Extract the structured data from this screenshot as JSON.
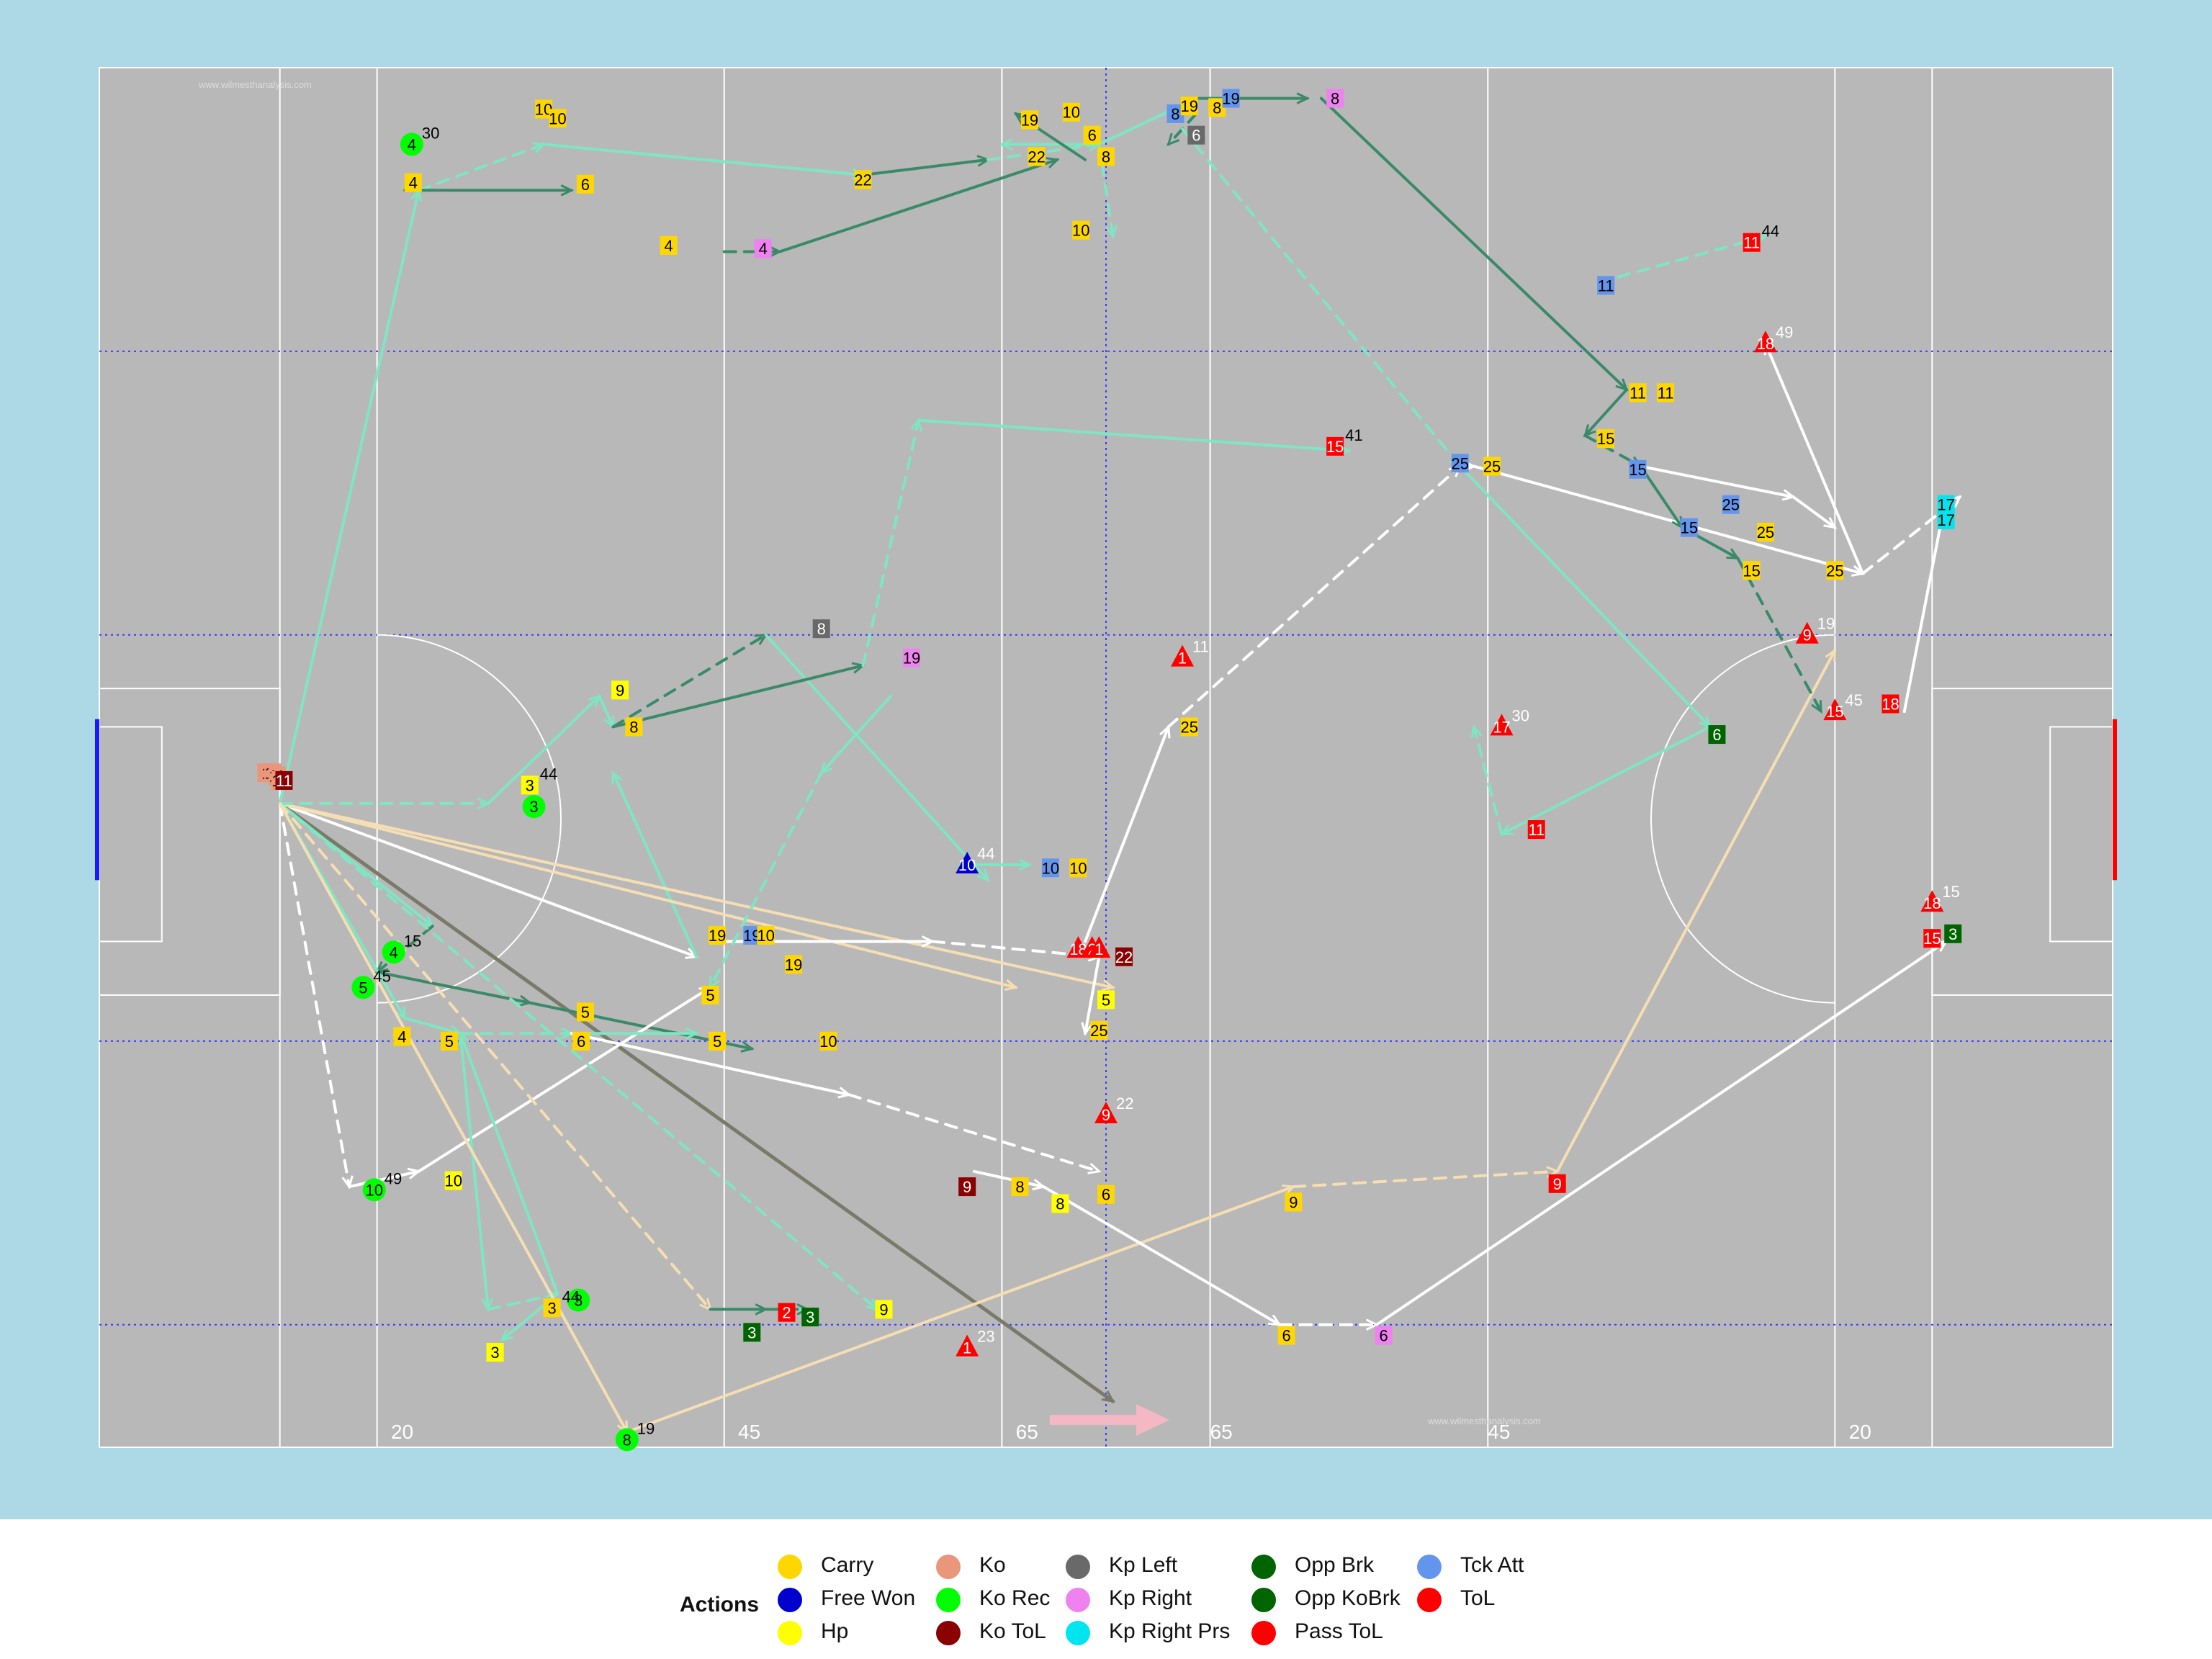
{
  "chart_data": {
    "type": "scatter",
    "title": "",
    "watermark": "www.wilmesthanalysis.com",
    "pitch": {
      "xlim": [
        0,
        145
      ],
      "ylim": [
        0,
        90
      ],
      "attack_direction": "right",
      "distance_labels": [
        "20",
        "45",
        "65",
        "65",
        "45",
        "20"
      ],
      "background": "#add8e6",
      "surface": "#b8b8b8",
      "line_color": "#ffffff",
      "quarter_line_color": "#1a1aff"
    },
    "legend": {
      "title": "Actions",
      "placement": "bottom",
      "items": [
        {
          "label": "Carry",
          "color": "#ffd700"
        },
        {
          "label": "Free Won",
          "color": "#0000cd"
        },
        {
          "label": "Hp",
          "color": "#ffff00"
        },
        {
          "label": "Ko",
          "color": "#e9967a"
        },
        {
          "label": "Ko Rec",
          "color": "#00ff00"
        },
        {
          "label": "Ko ToL",
          "color": "#8b0000"
        },
        {
          "label": "Kp Left",
          "color": "#696969"
        },
        {
          "label": "Kp Right",
          "color": "#ee82ee"
        },
        {
          "label": "Kp Right Prs",
          "color": "#00e5ee"
        },
        {
          "label": "Opp Brk",
          "color": "#006400"
        },
        {
          "label": "Opp KoBrk",
          "color": "#006400"
        },
        {
          "label": "Pass ToL",
          "color": "#ff0000"
        },
        {
          "label": "Tck Att",
          "color": "#6495ed"
        },
        {
          "label": "ToL",
          "color": "#ff0000"
        }
      ]
    },
    "link_colors": {
      "hand": "#7fe5c3",
      "hand_dark": "#3a8a6a",
      "kick": "#ffffff",
      "kick_long": "#f5deb3",
      "ko": "#7a7a6a"
    },
    "links": [
      [
        13,
        48,
        23,
        8,
        "hand"
      ],
      [
        23,
        8,
        32,
        5,
        "hand"
      ],
      [
        32,
        5,
        55,
        7,
        "hand"
      ],
      [
        55,
        7,
        64,
        6,
        "hand_dark"
      ],
      [
        64,
        6,
        72,
        5,
        "hand"
      ],
      [
        72,
        5,
        79,
        2,
        "hand"
      ],
      [
        79,
        2,
        87,
        2,
        "hand_dark"
      ],
      [
        72,
        5,
        73,
        11,
        "hand"
      ],
      [
        72,
        5,
        65,
        5,
        "hand"
      ],
      [
        71,
        6,
        66,
        3,
        "hand_dark"
      ],
      [
        45,
        12,
        49,
        12,
        "hand_dark"
      ],
      [
        49,
        12,
        69,
        6,
        "hand_dark"
      ],
      [
        22,
        8,
        34,
        8,
        "hand_dark"
      ],
      [
        79,
        3,
        77,
        5,
        "hand_dark"
      ],
      [
        13,
        48,
        43,
        58,
        "kick"
      ],
      [
        43,
        58,
        37,
        46,
        "hand"
      ],
      [
        13,
        48,
        73,
        87,
        "ko"
      ],
      [
        13,
        48,
        73,
        60,
        "kick_long"
      ],
      [
        13,
        48,
        66,
        60,
        "kick_long"
      ],
      [
        13,
        48,
        28,
        48,
        "hand"
      ],
      [
        28,
        48,
        36,
        41,
        "hand"
      ],
      [
        36,
        41,
        37,
        43,
        "hand"
      ],
      [
        37,
        43,
        48,
        37,
        "hand_dark"
      ],
      [
        48,
        37,
        64,
        53,
        "hand"
      ],
      [
        37,
        43,
        55,
        39,
        "hand_dark"
      ],
      [
        55,
        39,
        59,
        23,
        "hand"
      ],
      [
        59,
        23,
        90,
        25,
        "hand"
      ],
      [
        13,
        48,
        24,
        56,
        "hand"
      ],
      [
        24,
        56,
        20,
        59,
        "hand_dark"
      ],
      [
        20,
        59,
        31,
        61,
        "hand_dark"
      ],
      [
        31,
        61,
        47,
        64,
        "hand_dark"
      ],
      [
        13,
        48,
        18,
        73,
        "kick"
      ],
      [
        18,
        73,
        23,
        72,
        "kick"
      ],
      [
        23,
        72,
        44,
        60,
        "kick"
      ],
      [
        13,
        48,
        56,
        81,
        "hand"
      ],
      [
        13,
        48,
        22,
        62,
        "hand"
      ],
      [
        22,
        62,
        26,
        63,
        "hand"
      ],
      [
        26,
        63,
        34,
        63,
        "hand"
      ],
      [
        34,
        63,
        43,
        63,
        "hand"
      ],
      [
        26,
        63,
        28,
        81,
        "hand"
      ],
      [
        28,
        81,
        33,
        80,
        "hand"
      ],
      [
        33,
        80,
        29,
        83,
        "hand"
      ],
      [
        33,
        80,
        26,
        63,
        "hand"
      ],
      [
        13,
        48,
        44,
        81,
        "kick_long"
      ],
      [
        44,
        81,
        48,
        81,
        "hand_dark"
      ],
      [
        48,
        81,
        51,
        81,
        "hand"
      ],
      [
        48,
        81,
        51,
        81,
        "hand_dark"
      ],
      [
        13,
        48,
        38,
        89,
        "kick_long"
      ],
      [
        38,
        89,
        86,
        73,
        "kick_long"
      ],
      [
        86,
        73,
        105,
        72,
        "kick_long"
      ],
      [
        105,
        72,
        125,
        38,
        "kick_long"
      ],
      [
        34,
        63,
        54,
        67,
        "kick"
      ],
      [
        54,
        67,
        72,
        72,
        "kick"
      ],
      [
        63,
        72,
        68,
        73,
        "kick"
      ],
      [
        68,
        73,
        85,
        82,
        "kick"
      ],
      [
        85,
        82,
        92,
        82,
        "kick"
      ],
      [
        92,
        82,
        133,
        57,
        "kick"
      ],
      [
        45,
        57,
        60,
        57,
        "kick"
      ],
      [
        60,
        57,
        72,
        58,
        "kick"
      ],
      [
        72,
        58,
        71,
        63,
        "kick"
      ],
      [
        71,
        57,
        77,
        43,
        "kick"
      ],
      [
        77,
        43,
        98,
        26,
        "kick"
      ],
      [
        98,
        26,
        99,
        26,
        "kick"
      ],
      [
        99,
        26,
        127,
        33,
        "kick"
      ],
      [
        127,
        33,
        134,
        28,
        "kick"
      ],
      [
        127,
        33,
        120,
        18,
        "kick"
      ],
      [
        130,
        42,
        133,
        28,
        "kick"
      ],
      [
        78,
        4,
        98,
        26,
        "hand"
      ],
      [
        98,
        26,
        116,
        43,
        "hand"
      ],
      [
        116,
        43,
        101,
        50,
        "hand"
      ],
      [
        101,
        50,
        99,
        43,
        "hand"
      ],
      [
        88,
        2,
        110,
        21,
        "hand_dark"
      ],
      [
        110,
        21,
        107,
        24,
        "hand_dark"
      ],
      [
        107,
        24,
        111,
        26,
        "hand_dark"
      ],
      [
        111,
        26,
        114,
        30,
        "hand_dark"
      ],
      [
        114,
        30,
        118,
        32,
        "hand_dark"
      ],
      [
        118,
        32,
        124,
        42,
        "hand_dark"
      ],
      [
        111,
        26,
        122,
        28,
        "kick"
      ],
      [
        122,
        28,
        125,
        30,
        "kick"
      ],
      [
        108,
        14,
        120,
        11,
        "hand"
      ],
      [
        62,
        52,
        67,
        52,
        "hand"
      ],
      [
        57,
        41,
        52,
        46,
        "hand"
      ],
      [
        52,
        46,
        44,
        60,
        "hand"
      ]
    ],
    "points": [
      {
        "x": 12,
        "y": 46,
        "t": "Ko",
        "l": "1"
      },
      {
        "x": 12.5,
        "y": 46,
        "t": "Ko",
        "l": "11"
      },
      {
        "x": 12.8,
        "y": 46.2,
        "t": "Ko",
        "l": "11"
      },
      {
        "x": 13,
        "y": 46.5,
        "t": "Ko",
        "l": "11"
      },
      {
        "x": 13.3,
        "y": 46.5,
        "t": "Ko ToL",
        "l": "11"
      },
      {
        "x": 22.5,
        "y": 5,
        "t": "Ko Rec",
        "l": "4",
        "n": "30"
      },
      {
        "x": 32,
        "y": 2.7,
        "t": "Carry",
        "l": "10"
      },
      {
        "x": 33,
        "y": 3.3,
        "t": "Carry",
        "l": "10"
      },
      {
        "x": 22.6,
        "y": 7.5,
        "t": "Carry",
        "l": "4"
      },
      {
        "x": 35,
        "y": 7.6,
        "t": "Carry",
        "l": "6"
      },
      {
        "x": 55,
        "y": 7.3,
        "t": "Carry",
        "l": "22"
      },
      {
        "x": 67,
        "y": 3.4,
        "t": "Carry",
        "l": "19"
      },
      {
        "x": 70,
        "y": 2.9,
        "t": "Carry",
        "l": "10"
      },
      {
        "x": 71.5,
        "y": 4.4,
        "t": "Carry",
        "l": "6"
      },
      {
        "x": 67.5,
        "y": 5.8,
        "t": "Carry",
        "l": "22"
      },
      {
        "x": 72.5,
        "y": 5.8,
        "t": "Carry",
        "l": "8"
      },
      {
        "x": 70.7,
        "y": 10.6,
        "t": "Carry",
        "l": "10"
      },
      {
        "x": 77.5,
        "y": 3,
        "t": "Tck Att",
        "l": "8"
      },
      {
        "x": 78.5,
        "y": 2.5,
        "t": "Carry",
        "l": "19"
      },
      {
        "x": 80.5,
        "y": 2.6,
        "t": "Carry",
        "l": "8"
      },
      {
        "x": 81.5,
        "y": 2,
        "t": "Tck Att",
        "l": "19"
      },
      {
        "x": 79,
        "y": 4.4,
        "t": "Kp Left",
        "l": "6"
      },
      {
        "x": 89,
        "y": 2,
        "t": "Kp Right",
        "l": "8"
      },
      {
        "x": 41,
        "y": 11.6,
        "t": "Carry",
        "l": "4"
      },
      {
        "x": 47.8,
        "y": 11.8,
        "t": "Kp Right",
        "l": "4"
      },
      {
        "x": 108.5,
        "y": 14.2,
        "t": "Tck Att",
        "l": "11"
      },
      {
        "x": 119,
        "y": 11.4,
        "t": "ToL",
        "l": "11",
        "n": "44"
      },
      {
        "x": 120,
        "y": 18,
        "t": "Pass ToL",
        "l": "18",
        "n": "49"
      },
      {
        "x": 110.8,
        "y": 21.2,
        "t": "Carry",
        "l": "11"
      },
      {
        "x": 112.8,
        "y": 21.2,
        "t": "Carry",
        "l": "11"
      },
      {
        "x": 108.5,
        "y": 24.2,
        "t": "Carry",
        "l": "15"
      },
      {
        "x": 110.8,
        "y": 26.2,
        "t": "Tck Att",
        "l": "15"
      },
      {
        "x": 98,
        "y": 25.8,
        "t": "Tck Att",
        "l": "25"
      },
      {
        "x": 100.3,
        "y": 26,
        "t": "Carry",
        "l": "25"
      },
      {
        "x": 117.5,
        "y": 28.5,
        "t": "Tck Att",
        "l": "25"
      },
      {
        "x": 114.5,
        "y": 30,
        "t": "Tck Att",
        "l": "15"
      },
      {
        "x": 120,
        "y": 30.3,
        "t": "Carry",
        "l": "25"
      },
      {
        "x": 119,
        "y": 32.8,
        "t": "Carry",
        "l": "15"
      },
      {
        "x": 125,
        "y": 32.8,
        "t": "Carry",
        "l": "25"
      },
      {
        "x": 89,
        "y": 24.7,
        "t": "ToL",
        "l": "15",
        "n": "41"
      },
      {
        "x": 133,
        "y": 28.5,
        "t": "Kp Right Prs",
        "l": "17"
      },
      {
        "x": 133,
        "y": 29.5,
        "t": "Kp Right Prs",
        "l": "17"
      },
      {
        "x": 52,
        "y": 36.6,
        "t": "Kp Left",
        "l": "8"
      },
      {
        "x": 58.5,
        "y": 38.5,
        "t": "Kp Right",
        "l": "19"
      },
      {
        "x": 37.5,
        "y": 40.6,
        "t": "Hp",
        "l": "9"
      },
      {
        "x": 38.5,
        "y": 43,
        "t": "Carry",
        "l": "8"
      },
      {
        "x": 78,
        "y": 38.5,
        "t": "Pass ToL",
        "l": "1",
        "n": "11"
      },
      {
        "x": 78.5,
        "y": 43,
        "t": "Carry",
        "l": "25"
      },
      {
        "x": 123,
        "y": 37,
        "t": "Pass ToL",
        "l": "9",
        "n": "19"
      },
      {
        "x": 125,
        "y": 42,
        "t": "Pass ToL",
        "l": "15",
        "n": "45"
      },
      {
        "x": 129,
        "y": 41.5,
        "t": "ToL",
        "l": "18"
      },
      {
        "x": 101,
        "y": 43,
        "t": "Pass ToL",
        "l": "17",
        "n": "30"
      },
      {
        "x": 116.5,
        "y": 43.5,
        "t": "Opp Brk",
        "l": "6"
      },
      {
        "x": 103.5,
        "y": 49.7,
        "t": "ToL",
        "l": "11"
      },
      {
        "x": 31,
        "y": 46.8,
        "t": "Hp",
        "l": "3",
        "n": "44"
      },
      {
        "x": 31.3,
        "y": 48.2,
        "t": "Ko Rec",
        "l": "3"
      },
      {
        "x": 62.5,
        "y": 52,
        "t": "Free Won",
        "l": "10",
        "n": "44"
      },
      {
        "x": 68.5,
        "y": 52.2,
        "t": "Tck Att",
        "l": "10"
      },
      {
        "x": 70.5,
        "y": 52.2,
        "t": "Carry",
        "l": "10"
      },
      {
        "x": 44.5,
        "y": 56.6,
        "t": "Carry",
        "l": "19"
      },
      {
        "x": 47,
        "y": 56.6,
        "t": "Tck Att",
        "l": "19"
      },
      {
        "x": 48,
        "y": 56.6,
        "t": "Carry",
        "l": "10"
      },
      {
        "x": 50,
        "y": 58.5,
        "t": "Carry",
        "l": "19"
      },
      {
        "x": 70.5,
        "y": 57.5,
        "t": "Pass ToL",
        "l": "18"
      },
      {
        "x": 71.5,
        "y": 57.5,
        "t": "Pass ToL",
        "l": "2"
      },
      {
        "x": 72,
        "y": 57.5,
        "t": "Pass ToL",
        "l": "1"
      },
      {
        "x": 73.8,
        "y": 58,
        "t": "Ko ToL",
        "l": "22"
      },
      {
        "x": 132,
        "y": 54.5,
        "t": "Pass ToL",
        "l": "18",
        "n": "15"
      },
      {
        "x": 132,
        "y": 56.8,
        "t": "ToL",
        "l": "15"
      },
      {
        "x": 133.5,
        "y": 56.5,
        "t": "Opp Brk",
        "l": "3"
      },
      {
        "x": 21.2,
        "y": 57.7,
        "t": "Ko Rec",
        "l": "4",
        "n": "15"
      },
      {
        "x": 19,
        "y": 60,
        "t": "Ko Rec",
        "l": "5",
        "n": "45"
      },
      {
        "x": 44,
        "y": 60.5,
        "t": "Carry",
        "l": "5"
      },
      {
        "x": 72.5,
        "y": 60.8,
        "t": "Hp",
        "l": "5"
      },
      {
        "x": 72,
        "y": 62.8,
        "t": "Carry",
        "l": "25"
      },
      {
        "x": 35,
        "y": 61.6,
        "t": "Carry",
        "l": "5"
      },
      {
        "x": 21.8,
        "y": 63.2,
        "t": "Carry",
        "l": "4"
      },
      {
        "x": 25.2,
        "y": 63.5,
        "t": "Carry",
        "l": "5"
      },
      {
        "x": 34.7,
        "y": 63.5,
        "t": "Carry",
        "l": "6"
      },
      {
        "x": 44.5,
        "y": 63.5,
        "t": "Carry",
        "l": "5"
      },
      {
        "x": 52.5,
        "y": 63.5,
        "t": "Carry",
        "l": "10"
      },
      {
        "x": 72.5,
        "y": 68.3,
        "t": "Pass ToL",
        "l": "9",
        "n": "22"
      },
      {
        "x": 19.8,
        "y": 73.2,
        "t": "Ko Rec",
        "l": "10",
        "n": "49"
      },
      {
        "x": 25.5,
        "y": 72.6,
        "t": "Hp",
        "l": "10"
      },
      {
        "x": 62.5,
        "y": 73,
        "t": "Ko ToL",
        "l": "9"
      },
      {
        "x": 66.3,
        "y": 73,
        "t": "Carry",
        "l": "8"
      },
      {
        "x": 69.2,
        "y": 74.1,
        "t": "Hp",
        "l": "8"
      },
      {
        "x": 72.5,
        "y": 73.5,
        "t": "Carry",
        "l": "6"
      },
      {
        "x": 86,
        "y": 74,
        "t": "Carry",
        "l": "9"
      },
      {
        "x": 105,
        "y": 72.8,
        "t": "ToL",
        "l": "9"
      },
      {
        "x": 34.5,
        "y": 80.4,
        "t": "Ko Rec",
        "l": "3"
      },
      {
        "x": 32.6,
        "y": 80.9,
        "t": "Carry",
        "l": "3",
        "n": "44"
      },
      {
        "x": 28.5,
        "y": 83.8,
        "t": "Hp",
        "l": "3"
      },
      {
        "x": 56.5,
        "y": 81,
        "t": "Hp",
        "l": "9"
      },
      {
        "x": 49.5,
        "y": 81.2,
        "t": "ToL",
        "l": "2"
      },
      {
        "x": 47,
        "y": 82.5,
        "t": "Opp Brk",
        "l": "3"
      },
      {
        "x": 51.2,
        "y": 81.5,
        "t": "Opp Brk",
        "l": "3"
      },
      {
        "x": 62.5,
        "y": 83.5,
        "t": "Pass ToL",
        "l": "1",
        "n": "23"
      },
      {
        "x": 85.5,
        "y": 82.7,
        "t": "Carry",
        "l": "6"
      },
      {
        "x": 92.5,
        "y": 82.7,
        "t": "Kp Right",
        "l": "6"
      },
      {
        "x": 38,
        "y": 89.5,
        "t": "Ko Rec",
        "l": "8",
        "n": "19"
      }
    ]
  }
}
